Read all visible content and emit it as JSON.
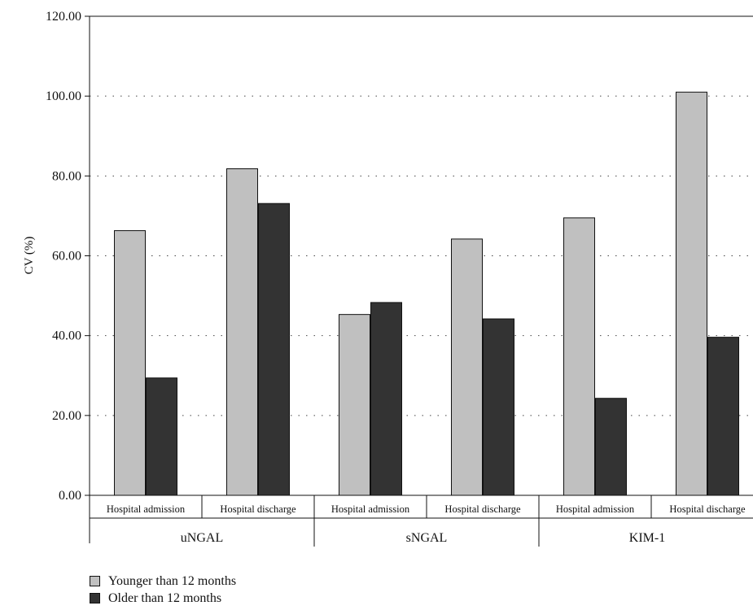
{
  "chart_data": {
    "type": "bar",
    "ylabel": "CV (%)",
    "ylim": [
      0,
      120
    ],
    "yticks": [
      "0.00",
      "20.00",
      "40.00",
      "60.00",
      "80.00",
      "100.00",
      "120.00"
    ],
    "grid": "horizontal-dotted",
    "groups": [
      {
        "label": "uNGAL",
        "categories": [
          "Hospital admission",
          "Hospital discharge"
        ]
      },
      {
        "label": "sNGAL",
        "categories": [
          "Hospital admission",
          "Hospital discharge"
        ]
      },
      {
        "label": "KIM-1",
        "categories": [
          "Hospital admission",
          "Hospital discharge"
        ]
      }
    ],
    "series": [
      {
        "name": "Younger than 12 months",
        "color": "#c0c0c0",
        "values": [
          66.3,
          81.8,
          45.3,
          64.2,
          69.5,
          101.0
        ]
      },
      {
        "name": "Older than 12 months",
        "color": "#333333",
        "values": [
          29.4,
          73.1,
          48.3,
          44.2,
          24.3,
          39.6
        ]
      }
    ],
    "legend_position": "bottom-left"
  }
}
